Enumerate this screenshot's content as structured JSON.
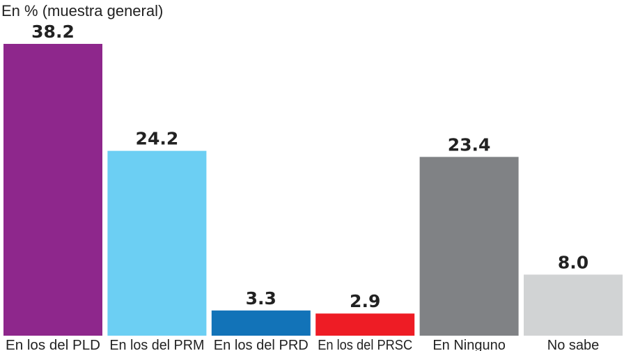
{
  "chart_data": {
    "type": "bar",
    "subtitle": "En % (muestra general)",
    "categories": [
      "En los del PLD",
      "En los del PRM",
      "En los del PRD",
      "En los del PRSC",
      "En Ninguno",
      "No sabe"
    ],
    "values": [
      38.2,
      24.2,
      3.3,
      2.9,
      23.4,
      8.0
    ],
    "value_labels": [
      "38.2",
      "24.2",
      "3.3",
      "2.9",
      "23.4",
      "8.0"
    ],
    "colors": [
      "#8e278c",
      "#6ccff3",
      "#1273b8",
      "#ee1c25",
      "#808285",
      "#d1d3d4"
    ],
    "ylim": [
      0,
      38.2
    ],
    "xlabel": "",
    "ylabel": "",
    "grid": false,
    "legend": "none"
  }
}
